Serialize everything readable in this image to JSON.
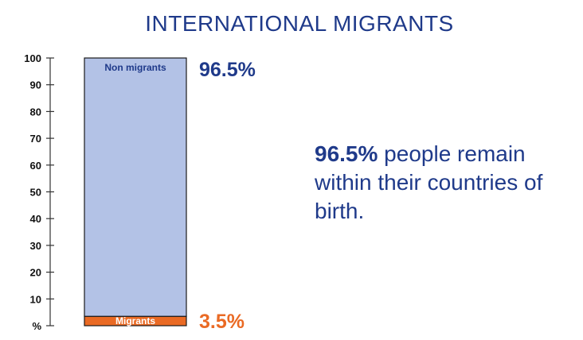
{
  "title": "INTERNATIONAL MIGRANTS",
  "description": {
    "highlight": "96.5%",
    "rest": " people remain within their countries of birth."
  },
  "colors": {
    "title": "#1f3a8a",
    "non_migrants_fill": "#b3c2e6",
    "migrants_fill": "#ea6a24",
    "non_migrants_text": "#1f3a8a",
    "migrants_text": "#ea6a24",
    "axis": "#333333"
  },
  "chart_data": {
    "type": "bar",
    "stacked": true,
    "categories": [
      ""
    ],
    "series": [
      {
        "name": "Migrants",
        "values": [
          3.5
        ],
        "value_label": "3.5%"
      },
      {
        "name": "Non migrants",
        "values": [
          96.5
        ],
        "value_label": "96.5%"
      }
    ],
    "y_ticks": [
      "%",
      "10",
      "20",
      "30",
      "40",
      "50",
      "60",
      "70",
      "80",
      "90",
      "100"
    ],
    "ylim": [
      0,
      100
    ],
    "grid": false,
    "legend": "none"
  }
}
